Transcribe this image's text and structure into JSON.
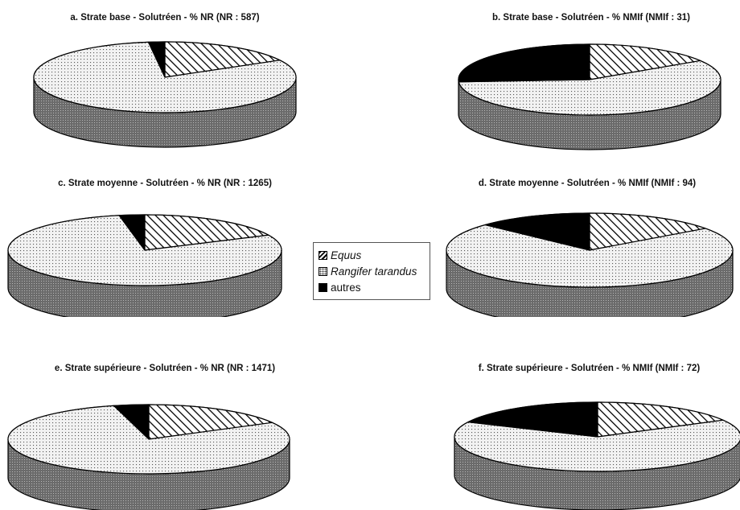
{
  "legend": {
    "items": [
      {
        "label": "Equus",
        "italic": true,
        "pattern": "hatch"
      },
      {
        "label": "Rangifer tarandus",
        "italic": true,
        "pattern": "dots"
      },
      {
        "label": "autres",
        "italic": false,
        "pattern": "solid"
      }
    ]
  },
  "colors": {
    "ink": "#000000",
    "side": "#707070",
    "background": "#ffffff"
  },
  "chart_data": [
    {
      "id": "a",
      "type": "pie",
      "title": "a. Strate base - Solutréen - % NR (NR : 587)",
      "categories": [
        "Equus",
        "Rangifer tarandus",
        "autres"
      ],
      "values": [
        17,
        81,
        2
      ]
    },
    {
      "id": "b",
      "type": "pie",
      "title": "b. Strate base - Solutréen - % NMIf (NMIf : 31)",
      "categories": [
        "Equus",
        "Rangifer tarandus",
        "autres"
      ],
      "values": [
        16,
        58,
        26
      ]
    },
    {
      "id": "c",
      "type": "pie",
      "title": "c. Strate moyenne - Solutréen - % NR (NR : 1265)",
      "categories": [
        "Equus",
        "Rangifer tarandus",
        "autres"
      ],
      "values": [
        18,
        79,
        3
      ]
    },
    {
      "id": "d",
      "type": "pie",
      "title": "d. Strate moyenne - Solutréen - % NMIf (NMIf : 94)",
      "categories": [
        "Equus",
        "Rangifer tarandus",
        "autres"
      ],
      "values": [
        15,
        72,
        13
      ]
    },
    {
      "id": "e",
      "type": "pie",
      "title": "e. Strate supérieure - Solutréen - % NR (NR : 1471)",
      "categories": [
        "Equus",
        "Rangifer tarandus",
        "autres"
      ],
      "values": [
        17,
        79,
        4
      ]
    },
    {
      "id": "f",
      "type": "pie",
      "title": "f. Strate supérieure - Solutréen - % NMIf (NMIf : 72)",
      "categories": [
        "Equus",
        "Rangifer tarandus",
        "autres"
      ],
      "values": [
        17,
        65,
        18
      ]
    }
  ]
}
